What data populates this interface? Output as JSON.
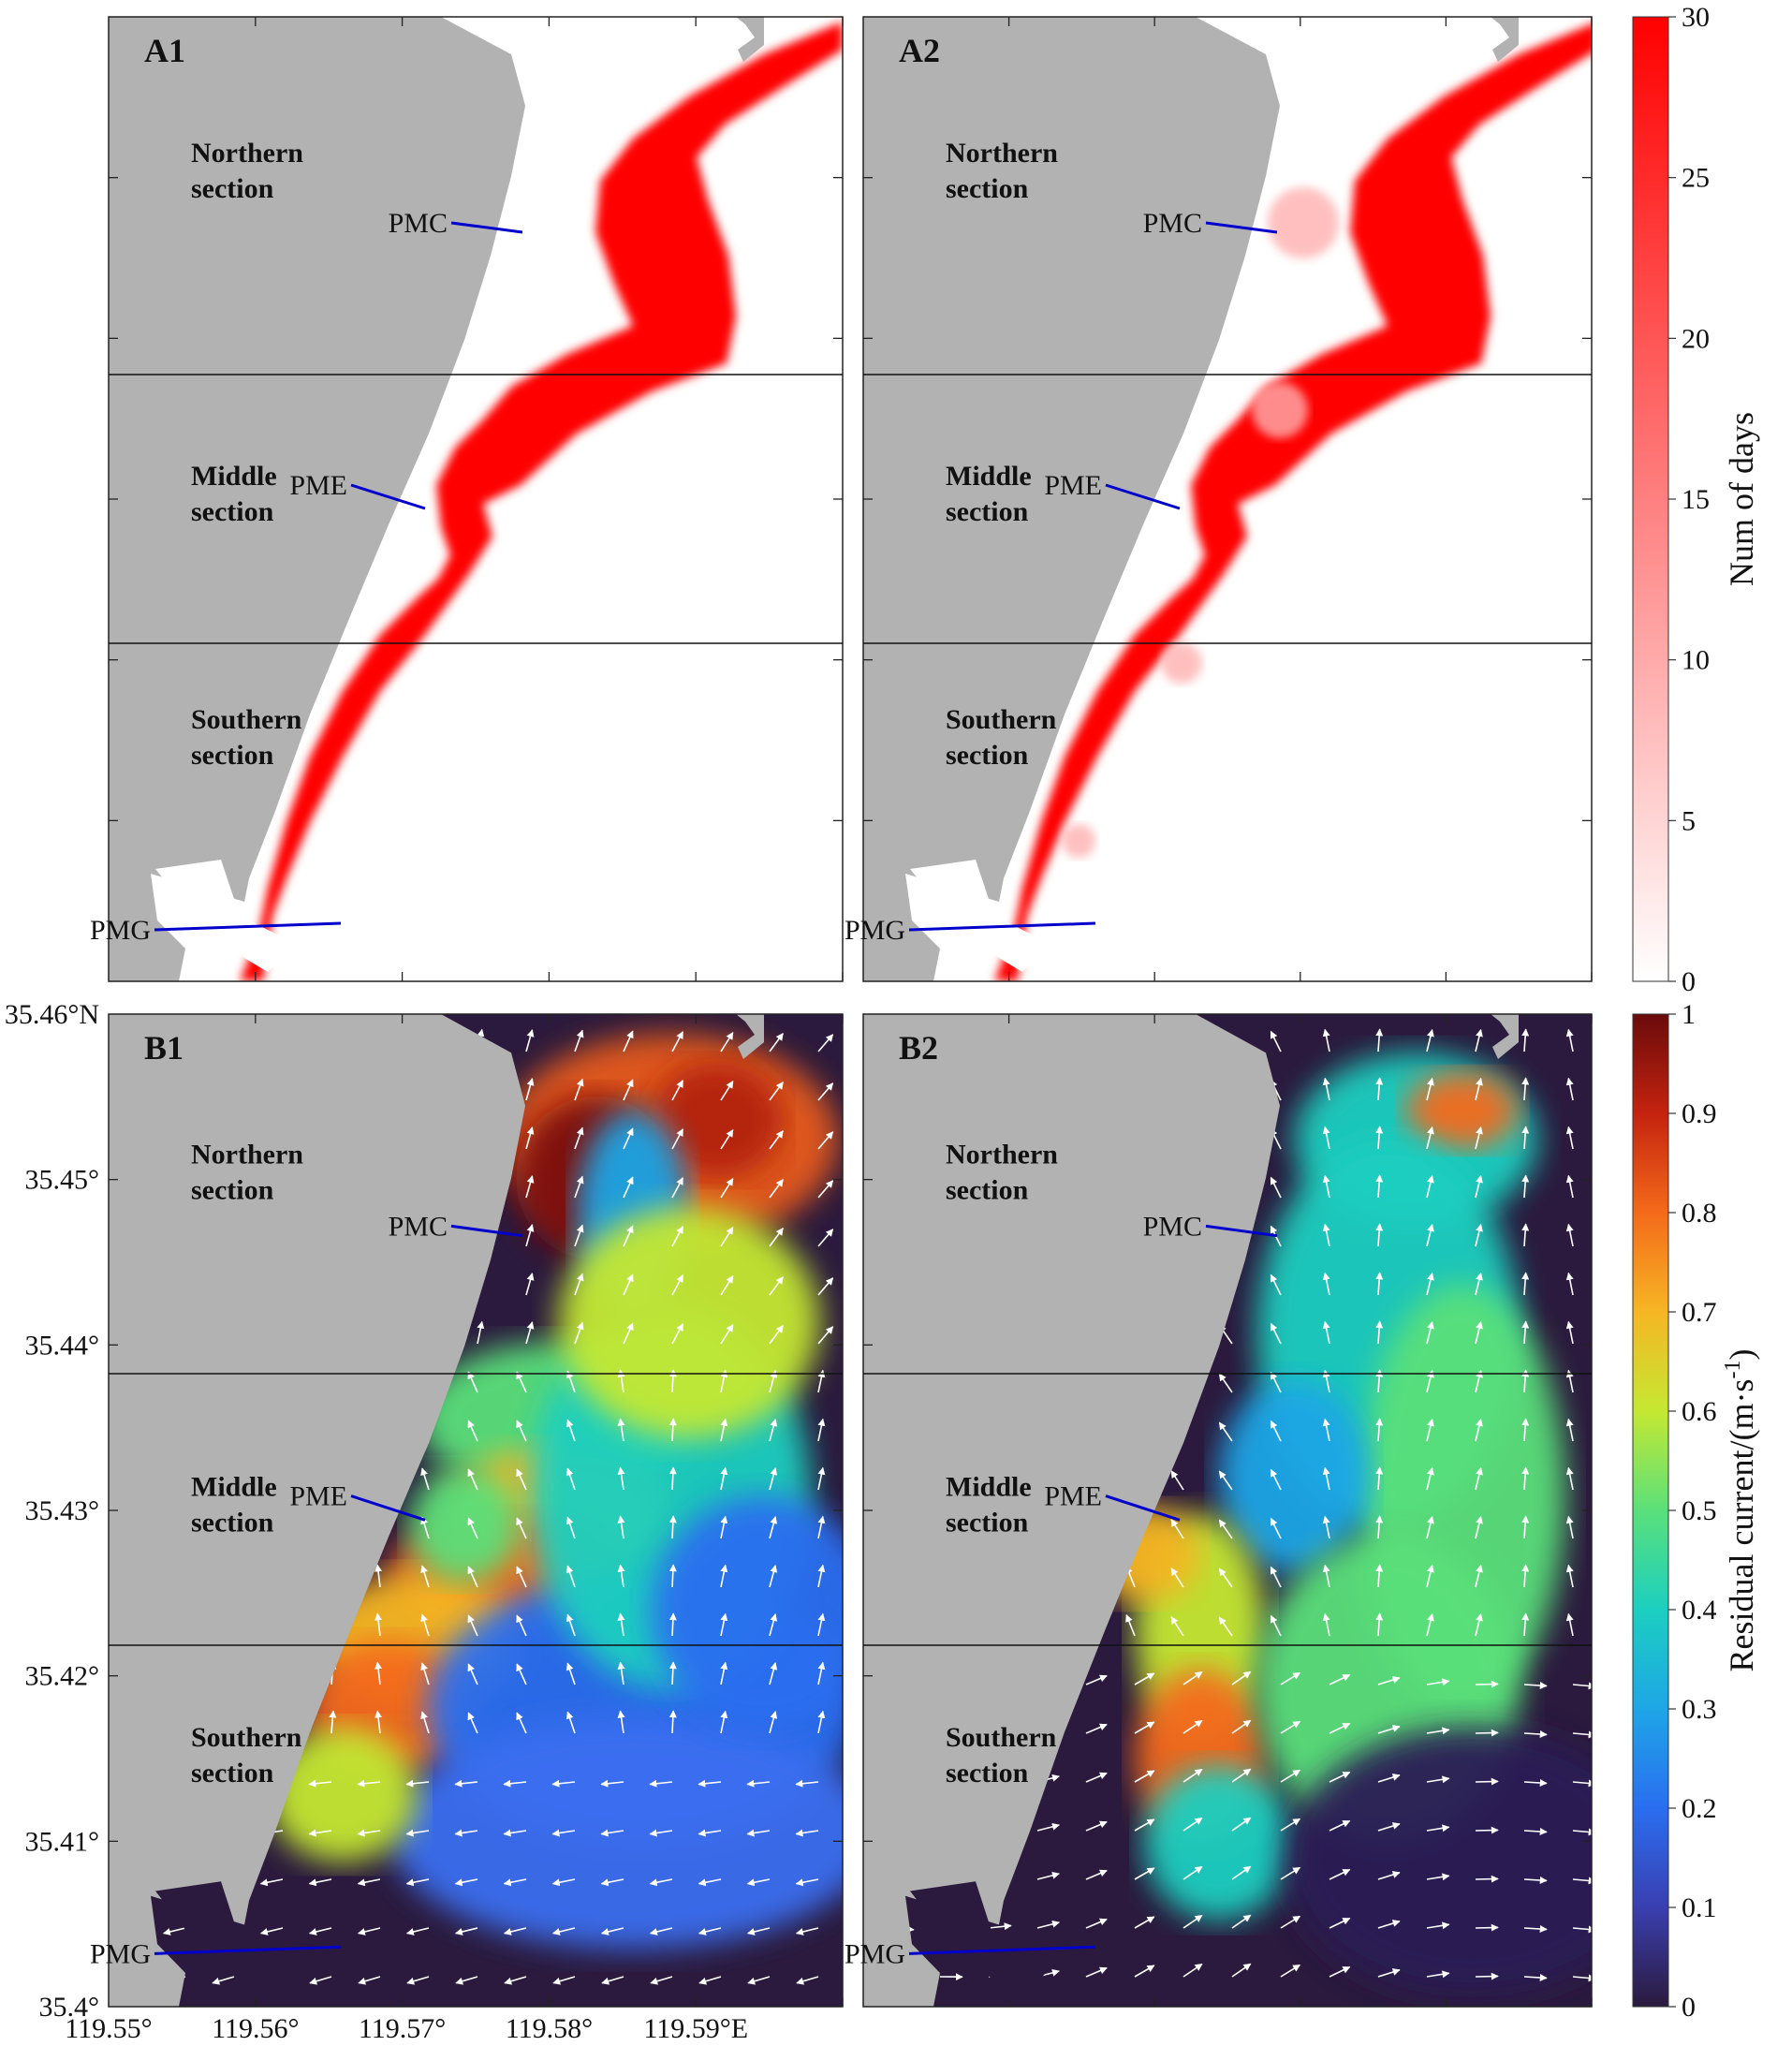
{
  "panels": {
    "A1": {
      "label": "A1"
    },
    "A2": {
      "label": "A2"
    },
    "B1": {
      "label": "B1"
    },
    "B2": {
      "label": "B2"
    }
  },
  "sections": {
    "northern": [
      "Northern",
      "section"
    ],
    "middle": [
      "Middle",
      "section"
    ],
    "southern": [
      "Southern",
      "section"
    ]
  },
  "sites": {
    "pmc": "PMC",
    "pme": "PME",
    "pmg": "PMG"
  },
  "axes": {
    "lat_ticks": [
      "35.46°N",
      "35.45°",
      "35.44°",
      "35.43°",
      "35.42°",
      "35.41°",
      "35.4°"
    ],
    "lon_ticks": [
      "119.55°",
      "119.56°",
      "119.57°",
      "119.58°",
      "119.59°E"
    ]
  },
  "colorbar_days": {
    "title": "Num of days",
    "ticks": [
      "0",
      "5",
      "10",
      "15",
      "20",
      "25",
      "30"
    ],
    "range": [
      0,
      30
    ]
  },
  "colorbar_current": {
    "title": "Residual current/(m·s",
    "title_sup": "-1",
    "title_end": ")",
    "ticks": [
      "0",
      "0.1",
      "0.2",
      "0.3",
      "0.4",
      "0.5",
      "0.6",
      "0.7",
      "0.8",
      "0.9",
      "1"
    ],
    "range": [
      0,
      1
    ]
  },
  "colors": {
    "land": "#b2b2b2",
    "sea": "#ffffff",
    "days_max": "#ff0000",
    "site_line": "#0000cc",
    "arrow": "#ffffff"
  }
}
